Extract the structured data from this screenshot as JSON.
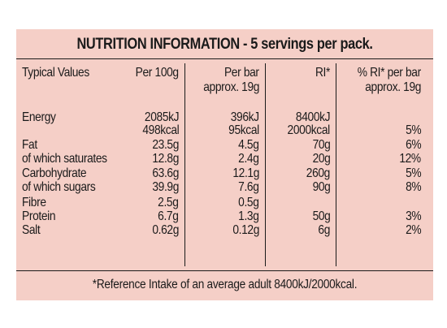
{
  "title": "NUTRITION INFORMATION - 5 servings per pack.",
  "headers": {
    "typical": "Typical Values",
    "per100g": "Per 100g",
    "perbar_line1": "Per bar",
    "perbar_line2": "approx. 19g",
    "ri": "RI*",
    "pctri_line1": "% RI* per bar",
    "pctri_line2": "approx. 19g"
  },
  "rows": [
    {
      "label": "Energy",
      "per100g": "2085kJ",
      "perbar": "396kJ",
      "ri": "8400kJ",
      "pct": ""
    },
    {
      "label": "",
      "per100g": "498kcal",
      "perbar": "95kcal",
      "ri": "2000kcal",
      "pct": "5%"
    },
    {
      "label": "Fat",
      "per100g": "23.5g",
      "perbar": "4.5g",
      "ri": "70g",
      "pct": "6%"
    },
    {
      "label": "of which saturates",
      "per100g": "12.8g",
      "perbar": "2.4g",
      "ri": "20g",
      "pct": "12%"
    },
    {
      "label": "Carbohydrate",
      "per100g": "63.6g",
      "perbar": "12.1g",
      "ri": "260g",
      "pct": "5%"
    },
    {
      "label": "of which sugars",
      "per100g": "39.9g",
      "perbar": "7.6g",
      "ri": "90g",
      "pct": "8%"
    },
    {
      "label": "Fibre",
      "per100g": "2.5g",
      "perbar": "0.5g",
      "ri": "",
      "pct": ""
    },
    {
      "label": "Protein",
      "per100g": "6.7g",
      "perbar": "1.3g",
      "ri": "50g",
      "pct": "3%"
    },
    {
      "label": "Salt",
      "per100g": "0.62g",
      "perbar": "0.12g",
      "ri": "6g",
      "pct": "2%"
    }
  ],
  "footnote": "*Reference Intake of an average adult 8400kJ/2000kcal."
}
